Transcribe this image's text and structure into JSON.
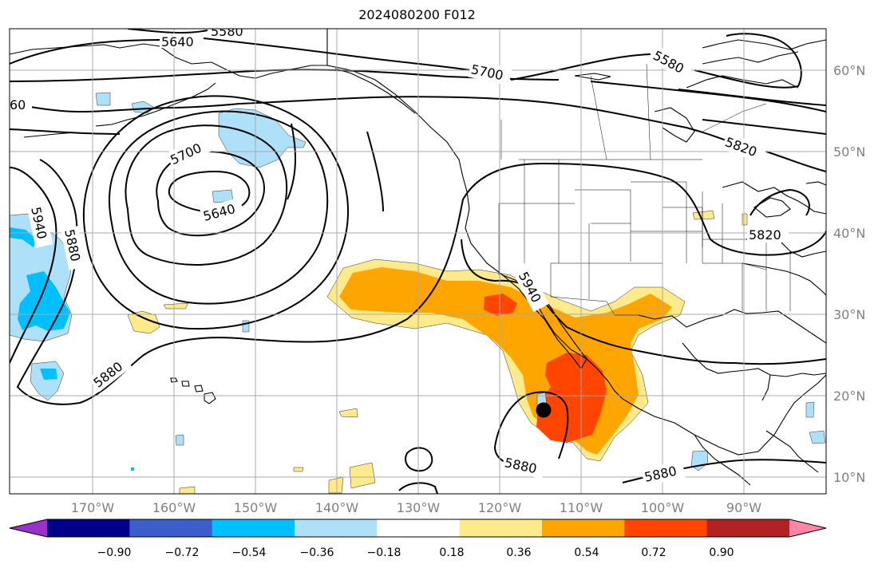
{
  "title": "2024080200 F012",
  "map": {
    "lat_labels": [
      "60°N",
      "50°N",
      "40°N",
      "30°N",
      "20°N",
      "10°N"
    ],
    "lon_labels": [
      "170°W",
      "160°W",
      "150°W",
      "140°W",
      "130°W",
      "120°W",
      "110°W",
      "100°W",
      "90°W"
    ],
    "contour_labels": [
      "5580",
      "5640",
      "5700",
      "5580",
      "5820",
      "60",
      "5700",
      "5640",
      "5940",
      "5880",
      "5820",
      "5940",
      "5880",
      "5880",
      "5880"
    ],
    "colors": {
      "label_gray": "#808080",
      "grid": "#a9a9a9"
    }
  },
  "colorbar": {
    "colors": [
      "#9932cc",
      "#00008b",
      "#3a5fcd",
      "#00bfff",
      "#afe0fa",
      "#ffffff",
      "#fcea8b",
      "#ffa500",
      "#ff4500",
      "#b22222",
      "#ff86a8"
    ],
    "ticks": [
      "−0.90",
      "−0.72",
      "−0.54",
      "−0.36",
      "−0.18",
      "0.18",
      "0.36",
      "0.54",
      "0.72",
      "0.90"
    ]
  }
}
